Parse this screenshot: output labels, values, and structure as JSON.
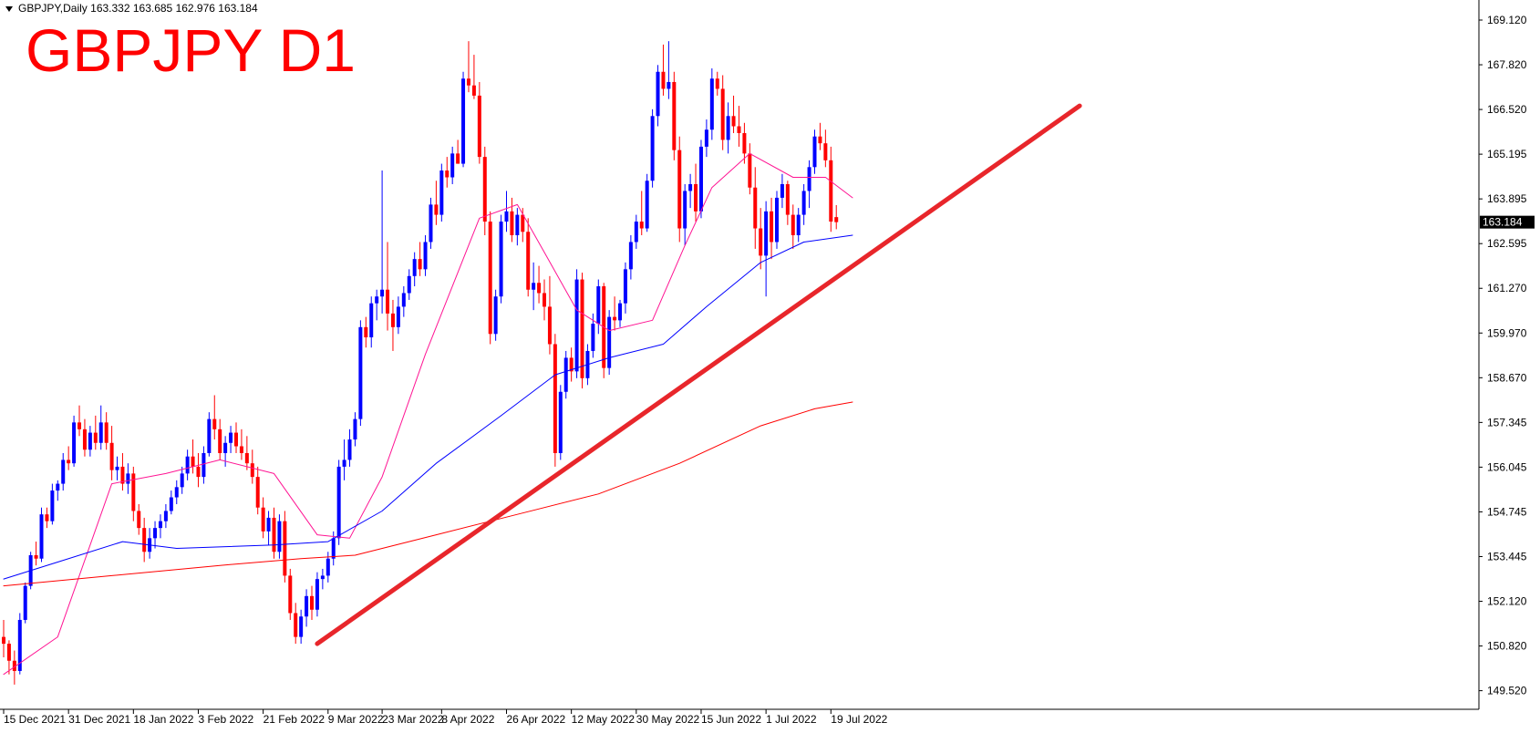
{
  "header": {
    "symbol_line": "GBPJPY,Daily  163.332 163.685 162.976 163.184",
    "big_title": "GBPJPY D1"
  },
  "colors": {
    "bull": "#0000ff",
    "bear": "#ff0000",
    "ma_fast": "#ff1493",
    "ma_mid": "#0000ff",
    "ma_slow": "#ff0000",
    "trendline": "#e8262b",
    "price_label_bg": "#000000",
    "price_label_fg": "#ffffff"
  },
  "chart_data": {
    "type": "candlestick",
    "title": "GBPJPY D1",
    "y_ticks": [
      "169.120",
      "167.820",
      "166.520",
      "165.195",
      "163.895",
      "162.595",
      "161.270",
      "159.970",
      "158.670",
      "157.345",
      "156.045",
      "154.745",
      "153.445",
      "152.120",
      "150.820",
      "149.520"
    ],
    "ylim": [
      149.0,
      169.6
    ],
    "x_ticks": [
      "15 Dec 2021",
      "31 Dec 2021",
      "18 Jan 2022",
      "3 Feb 2022",
      "21 Feb 2022",
      "9 Mar 2022",
      "23 Mar 2022",
      "8 Apr 2022",
      "26 Apr 2022",
      "12 May 2022",
      "30 May 2022",
      "15 Jun 2022",
      "1 Jul 2022",
      "19 Jul 2022"
    ],
    "x_tick_index": [
      0,
      12,
      24,
      36,
      48,
      60,
      70,
      81,
      93,
      105,
      117,
      129,
      141,
      153
    ],
    "current_price": "163.184",
    "current_price_value": 163.184,
    "candles": [
      [
        151.0,
        151.5,
        150.4,
        150.8
      ],
      [
        150.8,
        150.9,
        149.9,
        150.3
      ],
      [
        150.3,
        150.6,
        149.6,
        150.0
      ],
      [
        150.0,
        151.7,
        149.9,
        151.5
      ],
      [
        151.5,
        152.6,
        151.4,
        152.5
      ],
      [
        152.5,
        153.5,
        152.4,
        153.4
      ],
      [
        153.4,
        153.8,
        153.1,
        153.3
      ],
      [
        153.3,
        154.8,
        153.2,
        154.6
      ],
      [
        154.6,
        154.8,
        154.2,
        154.4
      ],
      [
        154.4,
        155.5,
        154.3,
        155.3
      ],
      [
        155.3,
        155.6,
        155.0,
        155.5
      ],
      [
        155.5,
        156.4,
        155.3,
        156.2
      ],
      [
        156.2,
        156.6,
        155.9,
        156.1
      ],
      [
        156.1,
        157.5,
        156.0,
        157.3
      ],
      [
        157.3,
        157.8,
        156.9,
        157.1
      ],
      [
        157.1,
        157.4,
        156.3,
        156.5
      ],
      [
        156.5,
        157.2,
        156.3,
        157.0
      ],
      [
        157.0,
        157.5,
        156.5,
        156.7
      ],
      [
        156.7,
        157.8,
        156.5,
        157.3
      ],
      [
        157.3,
        157.6,
        156.5,
        156.7
      ],
      [
        156.7,
        157.2,
        155.6,
        155.9
      ],
      [
        155.9,
        156.3,
        155.6,
        156.0
      ],
      [
        156.0,
        156.4,
        155.3,
        155.5
      ],
      [
        155.5,
        156.1,
        155.2,
        155.8
      ],
      [
        155.8,
        156.0,
        154.4,
        154.7
      ],
      [
        154.7,
        154.9,
        154.0,
        154.2
      ],
      [
        154.2,
        154.5,
        153.2,
        153.5
      ],
      [
        153.5,
        154.2,
        153.3,
        153.9
      ],
      [
        153.9,
        154.4,
        153.6,
        154.2
      ],
      [
        154.2,
        154.6,
        153.9,
        154.4
      ],
      [
        154.4,
        154.9,
        154.2,
        154.7
      ],
      [
        154.7,
        155.3,
        154.6,
        155.1
      ],
      [
        155.1,
        155.6,
        154.9,
        155.4
      ],
      [
        155.4,
        156.0,
        155.2,
        155.8
      ],
      [
        155.8,
        156.5,
        155.6,
        156.3
      ],
      [
        156.3,
        156.8,
        155.8,
        156.0
      ],
      [
        156.0,
        156.4,
        155.4,
        155.7
      ],
      [
        155.7,
        156.6,
        155.5,
        156.4
      ],
      [
        156.4,
        157.6,
        156.3,
        157.4
      ],
      [
        157.4,
        158.1,
        156.8,
        157.1
      ],
      [
        157.1,
        157.4,
        156.2,
        156.4
      ],
      [
        156.4,
        156.9,
        156.0,
        156.7
      ],
      [
        156.7,
        157.2,
        156.4,
        157.0
      ],
      [
        157.0,
        157.3,
        156.4,
        156.6
      ],
      [
        156.6,
        157.1,
        156.2,
        156.4
      ],
      [
        156.4,
        156.9,
        155.9,
        156.1
      ],
      [
        156.1,
        156.5,
        155.5,
        155.7
      ],
      [
        155.7,
        156.0,
        154.6,
        154.8
      ],
      [
        154.8,
        155.1,
        153.9,
        154.1
      ],
      [
        154.1,
        154.7,
        153.7,
        154.5
      ],
      [
        154.5,
        154.8,
        153.3,
        153.5
      ],
      [
        153.5,
        154.6,
        153.3,
        154.4
      ],
      [
        154.4,
        154.7,
        152.6,
        152.8
      ],
      [
        152.8,
        153.0,
        151.5,
        151.7
      ],
      [
        151.7,
        152.0,
        150.8,
        151.0
      ],
      [
        151.0,
        151.8,
        150.8,
        151.6
      ],
      [
        151.6,
        152.4,
        151.3,
        152.2
      ],
      [
        152.2,
        152.5,
        151.5,
        151.8
      ],
      [
        151.8,
        152.9,
        151.6,
        152.7
      ],
      [
        152.7,
        153.0,
        152.4,
        152.8
      ],
      [
        152.8,
        153.5,
        152.6,
        153.3
      ],
      [
        153.3,
        154.1,
        153.1,
        153.9
      ],
      [
        153.9,
        156.2,
        153.7,
        156.0
      ],
      [
        156.0,
        156.8,
        155.6,
        156.2
      ],
      [
        156.2,
        157.1,
        156.0,
        156.8
      ],
      [
        156.8,
        157.6,
        156.6,
        157.4
      ],
      [
        157.4,
        160.3,
        157.2,
        160.1
      ],
      [
        160.1,
        160.4,
        159.5,
        159.8
      ],
      [
        159.8,
        161.0,
        159.5,
        160.8
      ],
      [
        160.8,
        161.2,
        160.3,
        161.0
      ],
      [
        161.0,
        164.7,
        160.5,
        161.2
      ],
      [
        161.2,
        162.6,
        160.0,
        160.5
      ],
      [
        160.5,
        160.9,
        159.4,
        160.1
      ],
      [
        160.1,
        161.0,
        159.9,
        160.7
      ],
      [
        160.7,
        161.3,
        160.4,
        161.1
      ],
      [
        161.1,
        161.8,
        160.9,
        161.6
      ],
      [
        161.6,
        162.3,
        161.3,
        162.1
      ],
      [
        162.1,
        162.6,
        161.6,
        161.8
      ],
      [
        161.8,
        162.8,
        161.6,
        162.6
      ],
      [
        162.6,
        163.9,
        162.4,
        163.7
      ],
      [
        163.7,
        164.4,
        163.1,
        163.4
      ],
      [
        163.4,
        164.9,
        163.2,
        164.7
      ],
      [
        164.7,
        165.1,
        164.2,
        164.5
      ],
      [
        164.5,
        165.4,
        164.3,
        165.2
      ],
      [
        165.2,
        165.6,
        164.9,
        164.9
      ],
      [
        164.9,
        167.6,
        164.8,
        167.4
      ],
      [
        167.4,
        168.5,
        167.0,
        167.2
      ],
      [
        167.2,
        168.1,
        166.8,
        166.9
      ],
      [
        166.9,
        167.3,
        164.9,
        165.1
      ],
      [
        165.1,
        165.4,
        162.8,
        163.2
      ],
      [
        163.2,
        163.5,
        159.6,
        159.9
      ],
      [
        159.9,
        161.2,
        159.7,
        161.0
      ],
      [
        161.0,
        163.4,
        160.8,
        163.2
      ],
      [
        163.2,
        164.1,
        162.9,
        163.5
      ],
      [
        163.5,
        163.9,
        162.6,
        162.8
      ],
      [
        162.8,
        163.6,
        162.5,
        163.4
      ],
      [
        163.4,
        163.6,
        162.6,
        162.9
      ],
      [
        162.9,
        163.3,
        161.0,
        161.2
      ],
      [
        161.2,
        162.0,
        160.6,
        161.4
      ],
      [
        161.4,
        161.9,
        160.8,
        161.1
      ],
      [
        161.1,
        161.5,
        160.3,
        160.7
      ],
      [
        160.7,
        161.6,
        159.3,
        159.6
      ],
      [
        159.6,
        159.9,
        156.0,
        156.4
      ],
      [
        156.4,
        158.4,
        156.2,
        158.2
      ],
      [
        158.2,
        159.4,
        158.0,
        159.2
      ],
      [
        159.2,
        159.5,
        158.5,
        158.8
      ],
      [
        158.8,
        161.8,
        158.6,
        161.5
      ],
      [
        161.5,
        161.7,
        158.3,
        158.6
      ],
      [
        158.6,
        159.6,
        158.4,
        159.4
      ],
      [
        159.4,
        160.5,
        159.2,
        160.2
      ],
      [
        160.2,
        161.5,
        159.9,
        161.3
      ],
      [
        161.3,
        161.4,
        158.6,
        158.9
      ],
      [
        158.9,
        160.6,
        158.7,
        160.4
      ],
      [
        160.4,
        161.0,
        160.0,
        160.3
      ],
      [
        160.3,
        160.9,
        160.1,
        160.8
      ],
      [
        160.8,
        162.0,
        160.5,
        161.8
      ],
      [
        161.8,
        162.8,
        161.5,
        162.6
      ],
      [
        162.6,
        163.4,
        162.4,
        163.2
      ],
      [
        163.2,
        164.1,
        162.8,
        163.0
      ],
      [
        163.0,
        164.6,
        162.9,
        164.4
      ],
      [
        164.4,
        166.5,
        164.2,
        166.3
      ],
      [
        166.3,
        167.8,
        166.0,
        167.6
      ],
      [
        167.6,
        168.4,
        166.9,
        167.1
      ],
      [
        167.1,
        168.5,
        166.8,
        167.3
      ],
      [
        167.3,
        167.6,
        165.0,
        165.3
      ],
      [
        165.3,
        165.7,
        162.6,
        163.0
      ],
      [
        163.0,
        164.3,
        162.5,
        164.1
      ],
      [
        164.1,
        164.6,
        163.6,
        164.3
      ],
      [
        164.3,
        164.9,
        163.2,
        163.5
      ],
      [
        163.5,
        165.6,
        163.3,
        165.4
      ],
      [
        165.4,
        166.2,
        165.1,
        165.9
      ],
      [
        165.9,
        167.7,
        165.6,
        167.4
      ],
      [
        167.4,
        167.6,
        166.9,
        167.1
      ],
      [
        167.1,
        167.5,
        165.3,
        165.6
      ],
      [
        165.6,
        166.7,
        165.2,
        166.3
      ],
      [
        166.3,
        166.9,
        165.8,
        166.0
      ],
      [
        166.0,
        166.6,
        165.4,
        165.8
      ],
      [
        165.8,
        166.1,
        164.9,
        165.2
      ],
      [
        165.2,
        165.5,
        164.0,
        164.2
      ],
      [
        164.2,
        164.8,
        162.4,
        163.0
      ],
      [
        163.0,
        163.6,
        161.8,
        162.2
      ],
      [
        162.2,
        163.8,
        161.0,
        163.5
      ],
      [
        163.5,
        163.9,
        162.1,
        162.6
      ],
      [
        162.6,
        164.1,
        162.4,
        163.9
      ],
      [
        163.9,
        164.6,
        163.6,
        164.3
      ],
      [
        164.3,
        164.4,
        163.1,
        163.4
      ],
      [
        163.4,
        163.7,
        162.4,
        162.8
      ],
      [
        162.8,
        163.6,
        162.6,
        163.4
      ],
      [
        163.4,
        164.3,
        163.1,
        164.1
      ],
      [
        164.1,
        165.0,
        163.6,
        164.8
      ],
      [
        164.8,
        165.9,
        164.6,
        165.7
      ],
      [
        165.7,
        166.1,
        165.3,
        165.5
      ],
      [
        165.5,
        165.9,
        164.8,
        165.0
      ],
      [
        165.0,
        165.4,
        162.9,
        163.2
      ],
      [
        163.332,
        163.685,
        162.976,
        163.184
      ]
    ],
    "series": [
      {
        "kind": "ma_fast",
        "points": [
          [
            0,
            149.9
          ],
          [
            10,
            151.0
          ],
          [
            20,
            155.5
          ],
          [
            30,
            155.8
          ],
          [
            40,
            156.2
          ],
          [
            50,
            155.8
          ],
          [
            58,
            154.0
          ],
          [
            64,
            153.9
          ],
          [
            70,
            155.7
          ],
          [
            78,
            159.3
          ],
          [
            88,
            163.3
          ],
          [
            95,
            163.7
          ],
          [
            100,
            162.3
          ],
          [
            106,
            160.6
          ],
          [
            112,
            160.0
          ],
          [
            120,
            160.3
          ],
          [
            126,
            162.5
          ],
          [
            131,
            164.2
          ],
          [
            138,
            165.2
          ],
          [
            146,
            164.5
          ],
          [
            152,
            164.5
          ],
          [
            157,
            163.9
          ]
        ]
      },
      {
        "kind": "ma_mid",
        "points": [
          [
            0,
            152.7
          ],
          [
            10,
            153.2
          ],
          [
            22,
            153.8
          ],
          [
            32,
            153.6
          ],
          [
            50,
            153.7
          ],
          [
            60,
            153.8
          ],
          [
            70,
            154.7
          ],
          [
            80,
            156.1
          ],
          [
            92,
            157.5
          ],
          [
            102,
            158.7
          ],
          [
            112,
            159.2
          ],
          [
            122,
            159.6
          ],
          [
            130,
            160.7
          ],
          [
            140,
            162.0
          ],
          [
            148,
            162.6
          ],
          [
            157,
            162.8
          ]
        ]
      },
      {
        "kind": "ma_slow",
        "points": [
          [
            0,
            152.5
          ],
          [
            20,
            152.8
          ],
          [
            40,
            153.1
          ],
          [
            55,
            153.3
          ],
          [
            65,
            153.4
          ],
          [
            80,
            154.0
          ],
          [
            95,
            154.6
          ],
          [
            110,
            155.2
          ],
          [
            125,
            156.1
          ],
          [
            140,
            157.2
          ],
          [
            150,
            157.7
          ],
          [
            157,
            157.9
          ]
        ]
      },
      {
        "kind": "trendline",
        "points": [
          [
            58,
            150.8
          ],
          [
            199,
            166.6
          ]
        ]
      }
    ]
  }
}
